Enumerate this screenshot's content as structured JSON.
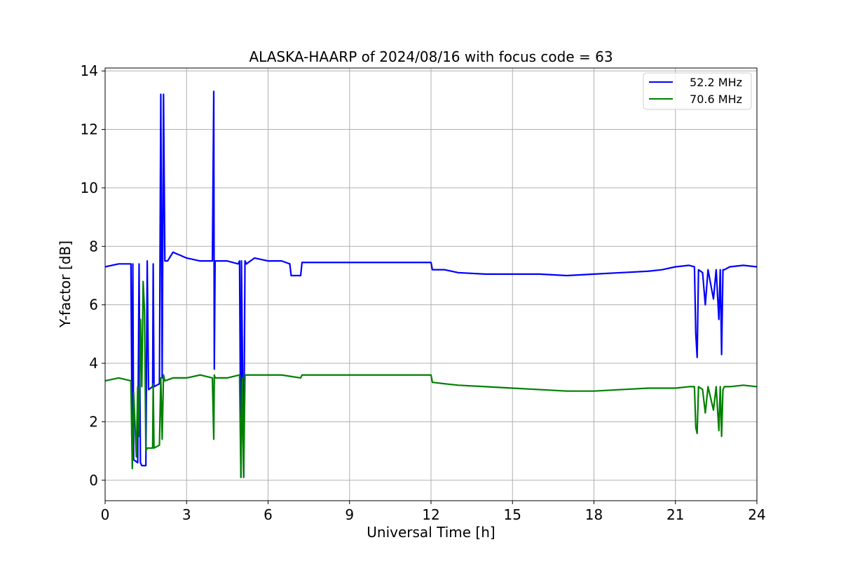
{
  "chart_data": {
    "type": "line",
    "title": "ALASKA-HAARP of 2024/08/16 with focus code = 63",
    "xlabel": "Universal Time [h]",
    "ylabel": "Y-factor [dB]",
    "xlim": [
      0,
      24
    ],
    "ylim": [
      -0.7,
      14.1
    ],
    "xticks": [
      0,
      3,
      6,
      9,
      12,
      15,
      18,
      21,
      24
    ],
    "yticks": [
      0,
      2,
      4,
      6,
      8,
      10,
      12,
      14
    ],
    "grid": true,
    "legend_position": "top-right",
    "series": [
      {
        "name": "52.2 MHz",
        "color": "#0000ff",
        "x": [
          0,
          0.5,
          0.95,
          1.0,
          1.02,
          1.05,
          1.2,
          1.25,
          1.3,
          1.35,
          1.5,
          1.55,
          1.6,
          1.75,
          1.77,
          1.8,
          2.0,
          2.05,
          2.1,
          2.15,
          2.2,
          2.3,
          2.5,
          3.0,
          3.5,
          3.95,
          4.0,
          4.02,
          4.05,
          4.1,
          4.5,
          4.9,
          4.95,
          5.0,
          5.02,
          5.1,
          5.15,
          5.2,
          5.5,
          6.0,
          6.5,
          6.8,
          6.85,
          7.2,
          7.25,
          12.0,
          12.05,
          12.5,
          13.0,
          14.0,
          15.0,
          16.0,
          17.0,
          18.0,
          19.0,
          20.0,
          20.5,
          21.0,
          21.5,
          21.7,
          21.75,
          21.8,
          21.85,
          22.0,
          22.1,
          22.2,
          22.4,
          22.5,
          22.6,
          22.65,
          22.7,
          22.75,
          22.8,
          23.0,
          23.5,
          24.0
        ],
        "y": [
          7.3,
          7.4,
          7.4,
          0.7,
          7.4,
          0.7,
          0.6,
          7.4,
          0.6,
          0.5,
          0.5,
          7.5,
          3.1,
          3.2,
          7.4,
          3.2,
          3.3,
          13.2,
          3.5,
          13.2,
          7.5,
          7.5,
          7.8,
          7.6,
          7.5,
          7.5,
          13.3,
          3.8,
          7.5,
          7.5,
          7.5,
          7.4,
          7.5,
          0.1,
          7.5,
          0.1,
          7.5,
          7.4,
          7.6,
          7.5,
          7.5,
          7.4,
          7.0,
          7.0,
          7.45,
          7.45,
          7.2,
          7.2,
          7.1,
          7.05,
          7.05,
          7.05,
          7.0,
          7.05,
          7.1,
          7.15,
          7.2,
          7.3,
          7.35,
          7.3,
          5.0,
          4.2,
          7.2,
          7.1,
          6.0,
          7.2,
          6.2,
          7.2,
          5.5,
          7.2,
          4.3,
          7.2,
          7.2,
          7.3,
          7.35,
          7.3
        ]
      },
      {
        "name": "70.6 MHz",
        "color": "#008000",
        "x": [
          0,
          0.5,
          0.95,
          1.0,
          1.05,
          1.15,
          1.2,
          1.25,
          1.3,
          1.35,
          1.4,
          1.45,
          1.5,
          1.55,
          1.75,
          1.77,
          1.8,
          2.0,
          2.05,
          2.1,
          2.15,
          2.2,
          2.5,
          3.0,
          3.5,
          3.95,
          4.0,
          4.02,
          4.05,
          4.5,
          4.95,
          5.0,
          5.05,
          5.1,
          5.15,
          5.5,
          6.0,
          6.5,
          7.2,
          7.25,
          12.0,
          12.05,
          12.5,
          13.0,
          14.0,
          15.0,
          16.0,
          17.0,
          18.0,
          19.0,
          20.0,
          21.0,
          21.5,
          21.7,
          21.75,
          21.8,
          21.85,
          22.0,
          22.1,
          22.2,
          22.4,
          22.5,
          22.6,
          22.65,
          22.7,
          22.75,
          22.8,
          23.0,
          23.5,
          24.0
        ],
        "y": [
          3.4,
          3.5,
          3.4,
          0.4,
          3.0,
          0.8,
          3.2,
          1.5,
          5.5,
          3.2,
          6.8,
          5.8,
          1.0,
          1.1,
          1.1,
          3.3,
          1.1,
          1.2,
          3.5,
          1.4,
          3.6,
          3.4,
          3.5,
          3.5,
          3.6,
          3.5,
          1.4,
          3.6,
          3.5,
          3.5,
          3.6,
          0.1,
          3.5,
          0.1,
          3.6,
          3.6,
          3.6,
          3.6,
          3.5,
          3.6,
          3.6,
          3.35,
          3.3,
          3.25,
          3.2,
          3.15,
          3.1,
          3.05,
          3.05,
          3.1,
          3.15,
          3.15,
          3.2,
          3.2,
          1.8,
          1.6,
          3.2,
          3.1,
          2.3,
          3.2,
          2.4,
          3.2,
          1.7,
          3.2,
          1.5,
          3.1,
          3.2,
          3.2,
          3.25,
          3.2
        ]
      }
    ]
  }
}
